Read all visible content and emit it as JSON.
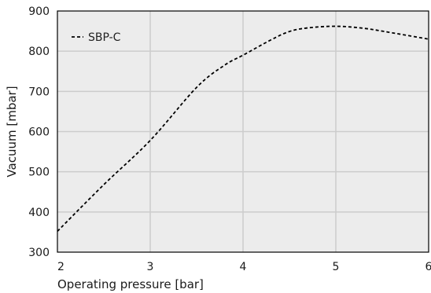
{
  "chart_data": {
    "type": "line",
    "xlabel": "Operating pressure [bar]",
    "ylabel": "Vacuum [mbar]",
    "xlim": [
      2,
      6
    ],
    "ylim": [
      300,
      900
    ],
    "xticks": [
      2,
      3,
      4,
      5,
      6
    ],
    "yticks": [
      300,
      400,
      500,
      600,
      700,
      800,
      900
    ],
    "grid": true,
    "legend_position": "top-left",
    "series": [
      {
        "name": "SBP-C",
        "line_style": "dashed",
        "color": "#000000",
        "x": [
          2.0,
          2.5,
          3.0,
          3.5,
          3.8,
          4.0,
          4.3,
          4.5,
          4.7,
          5.0,
          5.3,
          5.6,
          6.0
        ],
        "y": [
          352,
          468,
          578,
          710,
          765,
          790,
          828,
          849,
          858,
          862,
          857,
          846,
          830
        ]
      }
    ],
    "colors": {
      "plot_background": "#ececec",
      "grid": "#cccccc",
      "axis": "#000000"
    }
  }
}
